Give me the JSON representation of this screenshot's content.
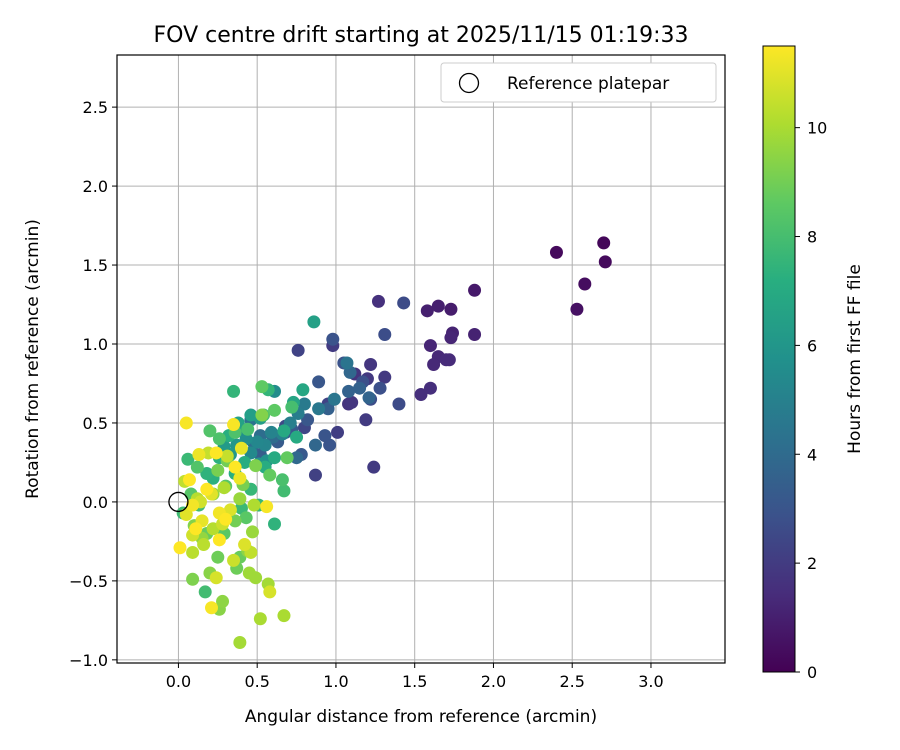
{
  "chart_data": {
    "type": "scatter",
    "title": "FOV centre drift starting at 2025/11/15 01:19:33",
    "xlabel": "Angular distance from reference (arcmin)",
    "ylabel": "Rotation from reference (arcmin)",
    "xlim": [
      -0.39,
      3.47
    ],
    "ylim": [
      -1.02,
      2.83
    ],
    "xticks": [
      "0.0",
      "0.5",
      "1.0",
      "1.5",
      "2.0",
      "2.5",
      "3.0"
    ],
    "yticks": [
      "−1.0",
      "−0.5",
      "0.0",
      "0.5",
      "1.0",
      "1.5",
      "2.0",
      "2.5"
    ],
    "grid": true,
    "legend": {
      "placement": "top-right",
      "entries": [
        "Reference platepar"
      ]
    },
    "reference_point": {
      "x": 0.0,
      "y": 0.0
    },
    "colorbar": {
      "label": "Hours from first FF file",
      "colormap": "viridis",
      "range": [
        0,
        11.5
      ],
      "ticks": [
        "0",
        "2",
        "4",
        "6",
        "8",
        "10"
      ]
    },
    "series": [
      {
        "name": "",
        "points": [
          [
            2.7,
            1.64,
            0.2
          ],
          [
            2.4,
            1.58,
            0.3
          ],
          [
            2.71,
            1.52,
            0.3
          ],
          [
            2.58,
            1.38,
            0.4
          ],
          [
            2.53,
            1.22,
            0.5
          ],
          [
            1.88,
            1.34,
            0.8
          ],
          [
            1.73,
            1.22,
            0.9
          ],
          [
            1.65,
            1.24,
            1.0
          ],
          [
            1.58,
            1.21,
            1.0
          ],
          [
            1.74,
            1.07,
            1.1
          ],
          [
            1.88,
            1.06,
            1.1
          ],
          [
            1.73,
            1.04,
            1.2
          ],
          [
            1.6,
            0.99,
            1.2
          ],
          [
            1.65,
            0.92,
            1.3
          ],
          [
            1.62,
            0.87,
            1.3
          ],
          [
            1.7,
            0.9,
            1.4
          ],
          [
            1.72,
            0.9,
            1.4
          ],
          [
            1.6,
            0.72,
            1.5
          ],
          [
            1.54,
            0.68,
            1.5
          ],
          [
            1.27,
            1.27,
            1.6
          ],
          [
            1.12,
            0.81,
            1.7
          ],
          [
            1.08,
            0.62,
            1.7
          ],
          [
            1.1,
            0.63,
            1.8
          ],
          [
            1.22,
            0.87,
            1.8
          ],
          [
            1.31,
            0.79,
            1.9
          ],
          [
            1.2,
            0.78,
            1.9
          ],
          [
            1.19,
            0.52,
            2.0
          ],
          [
            1.24,
            0.22,
            2.0
          ],
          [
            0.98,
            0.99,
            2.0
          ],
          [
            1.01,
            0.44,
            2.1
          ],
          [
            0.87,
            0.17,
            2.2
          ],
          [
            0.95,
            0.62,
            2.3
          ],
          [
            0.76,
            0.96,
            2.3
          ],
          [
            0.8,
            0.47,
            2.4
          ],
          [
            0.68,
            0.48,
            2.5
          ],
          [
            1.43,
            1.26,
            2.6
          ],
          [
            1.4,
            0.62,
            2.6
          ],
          [
            1.31,
            1.06,
            2.7
          ],
          [
            1.22,
            0.65,
            2.7
          ],
          [
            1.28,
            0.72,
            2.8
          ],
          [
            1.17,
            0.76,
            2.8
          ],
          [
            0.98,
            1.03,
            2.9
          ],
          [
            1.05,
            0.88,
            2.9
          ],
          [
            0.96,
            0.36,
            3.0
          ],
          [
            0.93,
            0.42,
            3.0
          ],
          [
            0.89,
            0.76,
            3.1
          ],
          [
            0.82,
            0.52,
            3.1
          ],
          [
            0.78,
            0.3,
            3.2
          ],
          [
            0.72,
            0.46,
            3.2
          ],
          [
            0.68,
            0.44,
            3.3
          ],
          [
            0.63,
            0.38,
            3.3
          ],
          [
            0.55,
            0.36,
            3.4
          ],
          [
            0.52,
            0.3,
            3.4
          ],
          [
            0.95,
            0.59,
            3.5
          ],
          [
            1.08,
            0.7,
            3.6
          ],
          [
            1.15,
            0.72,
            3.6
          ],
          [
            1.21,
            0.66,
            3.7
          ],
          [
            1.09,
            0.82,
            3.8
          ],
          [
            0.87,
            0.36,
            3.8
          ],
          [
            0.75,
            0.28,
            3.9
          ],
          [
            0.6,
            0.41,
            4.0
          ],
          [
            0.52,
            0.42,
            4.1
          ],
          [
            0.48,
            0.37,
            4.2
          ],
          [
            0.46,
            0.52,
            4.3
          ],
          [
            1.07,
            0.88,
            4.4
          ],
          [
            0.99,
            0.65,
            4.5
          ],
          [
            0.89,
            0.59,
            4.6
          ],
          [
            0.8,
            0.62,
            4.7
          ],
          [
            0.76,
            0.56,
            4.8
          ],
          [
            0.71,
            0.5,
            4.9
          ],
          [
            0.66,
            0.43,
            5.0
          ],
          [
            0.59,
            0.44,
            5.1
          ],
          [
            0.55,
            0.36,
            5.2
          ],
          [
            0.5,
            0.38,
            5.3
          ],
          [
            0.46,
            0.31,
            5.4
          ],
          [
            0.61,
            0.7,
            5.5
          ],
          [
            0.43,
            0.4,
            5.6
          ],
          [
            0.4,
            0.45,
            5.7
          ],
          [
            0.56,
            0.26,
            5.8
          ],
          [
            0.51,
            0.24,
            5.9
          ],
          [
            0.37,
            0.36,
            6.0
          ],
          [
            0.33,
            0.3,
            6.1
          ],
          [
            0.29,
            0.35,
            6.2
          ],
          [
            0.52,
            0.53,
            6.3
          ],
          [
            0.46,
            0.55,
            6.4
          ],
          [
            0.86,
            1.14,
            6.5
          ],
          [
            0.38,
            0.5,
            6.6
          ],
          [
            0.73,
            0.63,
            6.7
          ],
          [
            0.79,
            0.71,
            6.8
          ],
          [
            0.67,
            0.45,
            6.9
          ],
          [
            0.75,
            0.41,
            7.0
          ],
          [
            0.61,
            0.28,
            7.0
          ],
          [
            0.55,
            0.22,
            7.1
          ],
          [
            0.42,
            0.25,
            7.1
          ],
          [
            0.36,
            0.18,
            7.2
          ],
          [
            0.32,
            0.42,
            7.2
          ],
          [
            0.26,
            0.28,
            7.3
          ],
          [
            0.22,
            0.15,
            7.3
          ],
          [
            0.18,
            0.18,
            7.4
          ],
          [
            0.61,
            -0.14,
            7.4
          ],
          [
            0.35,
            0.7,
            7.5
          ],
          [
            0.57,
            0.71,
            7.5
          ],
          [
            0.46,
            0.08,
            7.6
          ],
          [
            0.51,
            -0.02,
            7.6
          ],
          [
            0.4,
            -0.04,
            7.7
          ],
          [
            0.06,
            0.27,
            7.7
          ],
          [
            0.13,
            -0.02,
            7.8
          ],
          [
            0.03,
            -0.07,
            7.8
          ],
          [
            0.17,
            -0.57,
            7.9
          ],
          [
            0.67,
            0.07,
            7.9
          ],
          [
            0.72,
            0.6,
            8.0
          ],
          [
            0.54,
            0.55,
            8.0
          ],
          [
            0.66,
            0.14,
            8.1
          ],
          [
            0.44,
            0.46,
            8.1
          ],
          [
            0.36,
            0.44,
            8.2
          ],
          [
            0.26,
            0.4,
            8.2
          ],
          [
            0.2,
            0.45,
            8.3
          ],
          [
            0.12,
            0.22,
            8.3
          ],
          [
            0.08,
            0.05,
            8.4
          ],
          [
            0.3,
            0.1,
            8.4
          ],
          [
            0.29,
            -0.2,
            8.5
          ],
          [
            0.43,
            -0.1,
            8.5
          ],
          [
            0.61,
            0.58,
            8.6
          ],
          [
            0.53,
            0.73,
            8.6
          ],
          [
            0.58,
            0.17,
            8.7
          ],
          [
            0.69,
            0.28,
            8.7
          ],
          [
            0.39,
            -0.35,
            8.8
          ],
          [
            0.18,
            -0.2,
            8.8
          ],
          [
            0.25,
            -0.35,
            8.9
          ],
          [
            0.37,
            -0.42,
            8.9
          ],
          [
            0.31,
            0.26,
            9.0
          ],
          [
            0.36,
            -0.12,
            9.0
          ],
          [
            0.25,
            0.2,
            9.1
          ],
          [
            0.41,
            0.11,
            9.1
          ],
          [
            0.09,
            -0.49,
            9.2
          ],
          [
            0.49,
            0.23,
            9.2
          ],
          [
            0.53,
            0.55,
            9.3
          ],
          [
            0.1,
            -0.15,
            9.3
          ],
          [
            0.2,
            -0.45,
            9.4
          ],
          [
            0.26,
            -0.68,
            9.4
          ],
          [
            0.44,
            -0.31,
            9.5
          ],
          [
            0.28,
            -0.63,
            9.5
          ],
          [
            0.15,
            -0.23,
            9.6
          ],
          [
            0.22,
            0.05,
            9.6
          ],
          [
            0.39,
            0.02,
            9.7
          ],
          [
            0.47,
            -0.19,
            9.7
          ],
          [
            0.49,
            -0.48,
            9.8
          ],
          [
            0.45,
            -0.45,
            9.8
          ],
          [
            0.57,
            -0.52,
            9.9
          ],
          [
            0.39,
            -0.89,
            9.9
          ],
          [
            0.67,
            -0.72,
            10.0
          ],
          [
            0.52,
            -0.74,
            10.0
          ],
          [
            0.48,
            -0.02,
            10.1
          ],
          [
            0.29,
            0.09,
            10.1
          ],
          [
            0.12,
            0.02,
            10.2
          ],
          [
            0.22,
            -0.17,
            10.2
          ],
          [
            0.09,
            -0.32,
            10.3
          ],
          [
            0.16,
            -0.27,
            10.3
          ],
          [
            0.04,
            0.13,
            10.4
          ],
          [
            0.46,
            -0.32,
            10.4
          ],
          [
            0.31,
            0.29,
            10.5
          ],
          [
            0.19,
            0.31,
            10.5
          ],
          [
            0.28,
            -0.14,
            10.6
          ],
          [
            0.35,
            -0.37,
            10.6
          ],
          [
            0.14,
            0.0,
            10.7
          ],
          [
            0.09,
            -0.21,
            10.7
          ],
          [
            0.58,
            -0.57,
            10.8
          ],
          [
            0.24,
            -0.48,
            10.8
          ],
          [
            0.33,
            -0.05,
            10.9
          ],
          [
            0.42,
            -0.27,
            10.9
          ],
          [
            0.21,
            0.05,
            11.0
          ],
          [
            0.05,
            -0.08,
            11.0
          ],
          [
            0.15,
            -0.12,
            11.1
          ],
          [
            0.4,
            0.34,
            11.1
          ],
          [
            0.39,
            0.15,
            11.2
          ],
          [
            0.13,
            0.3,
            11.2
          ],
          [
            0.26,
            -0.07,
            11.3
          ],
          [
            0.09,
            -0.02,
            11.3
          ],
          [
            0.21,
            -0.67,
            11.4
          ],
          [
            0.56,
            -0.03,
            11.4
          ],
          [
            0.05,
            0.5,
            11.4
          ],
          [
            0.35,
            0.49,
            11.4
          ],
          [
            0.01,
            -0.29,
            11.5
          ],
          [
            0.26,
            -0.24,
            11.5
          ],
          [
            0.18,
            0.08,
            11.5
          ],
          [
            0.36,
            0.22,
            11.5
          ],
          [
            0.11,
            -0.17,
            11.5
          ],
          [
            0.3,
            -0.11,
            11.5
          ],
          [
            0.07,
            0.14,
            11.5
          ],
          [
            0.24,
            0.31,
            11.5
          ]
        ]
      }
    ]
  }
}
